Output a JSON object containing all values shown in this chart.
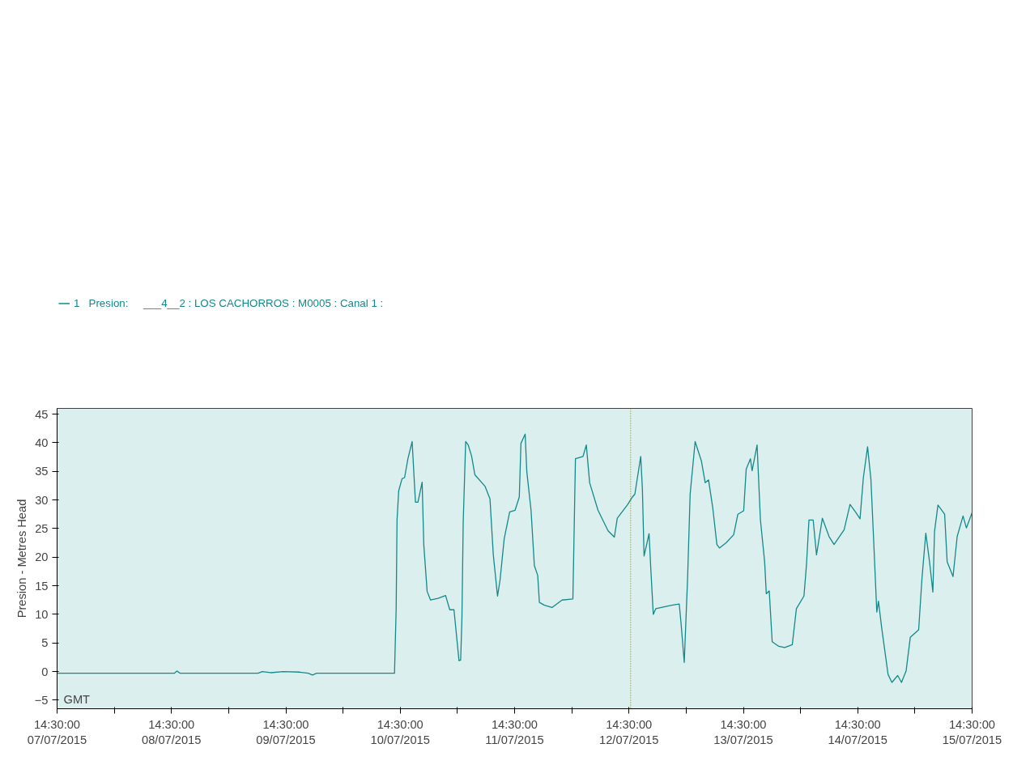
{
  "chart_data": {
    "type": "line",
    "ylabel": "Presion - Metres Head",
    "legend": "top left",
    "grid": false,
    "marker": "none",
    "line_style": "solid",
    "xlim": [
      "2015-07-07T14:30",
      "2015-07-15T14:30"
    ],
    "xticks": [
      {
        "value": "2015-07-07T14:30",
        "label": "14:30:00\n07/07/2015"
      },
      {
        "value": "2015-07-08T02:30",
        "label": null
      },
      {
        "value": "2015-07-08T14:30",
        "label": "14:30:00\n08/07/2015"
      },
      {
        "value": "2015-07-09T02:30",
        "label": null
      },
      {
        "value": "2015-07-09T14:30",
        "label": "14:30:00\n09/07/2015"
      },
      {
        "value": "2015-07-10T02:30",
        "label": null
      },
      {
        "value": "2015-07-10T14:30",
        "label": "14:30:00\n10/07/2015"
      },
      {
        "value": "2015-07-11T02:30",
        "label": null
      },
      {
        "value": "2015-07-11T14:30",
        "label": "14:30:00\n11/07/2015"
      },
      {
        "value": "2015-07-12T02:30",
        "label": null
      },
      {
        "value": "2015-07-12T14:30",
        "label": "14:30:00\n12/07/2015"
      },
      {
        "value": "2015-07-13T02:30",
        "label": null
      },
      {
        "value": "2015-07-13T14:30",
        "label": "14:30:00\n13/07/2015"
      },
      {
        "value": "2015-07-14T02:30",
        "label": null
      },
      {
        "value": "2015-07-14T14:30",
        "label": "14:30:00\n14/07/2015"
      },
      {
        "value": "2015-07-15T02:30",
        "label": null
      },
      {
        "value": "2015-07-15T14:30",
        "label": "14:30:00\n15/07/2015"
      }
    ],
    "ylim": [
      -6.5,
      46
    ],
    "yticks": [
      -5,
      0,
      5,
      10,
      15,
      20,
      25,
      30,
      35,
      40,
      45
    ],
    "annotations": [
      "GMT"
    ],
    "ref_lines": [
      {
        "axis": "x",
        "value": "2015-07-12T14:51",
        "label": null,
        "color": "#808000",
        "line_style": "dotted"
      }
    ],
    "series": [
      {
        "name": "1   Presion:     ___4__2 : LOS CACHORROS : M0005 : Canal 1 :",
        "color": "#14898a",
        "x": [
          "2015-07-07T14:30",
          "2015-07-08T15:06",
          "2015-07-08T15:38",
          "2015-07-08T16:20",
          "2015-07-09T08:40",
          "2015-07-09T09:33",
          "2015-07-09T11:18",
          "2015-07-09T13:56",
          "2015-07-09T17:27",
          "2015-07-09T19:13",
          "2015-07-09T20:05",
          "2015-07-09T20:58",
          "2015-07-10T13:18",
          "2015-07-10T13:39",
          "2015-07-10T13:50",
          "2015-07-10T14:11",
          "2015-07-10T14:53",
          "2015-07-10T15:25",
          "2015-07-10T16:07",
          "2015-07-10T17:00",
          "2015-07-10T17:42",
          "2015-07-10T18:13",
          "2015-07-10T19:06",
          "2015-07-10T19:27",
          "2015-07-10T20:09",
          "2015-07-10T20:52",
          "2015-07-10T22:27",
          "2015-07-11T00:01",
          "2015-07-11T00:54",
          "2015-07-11T01:47",
          "2015-07-11T02:50",
          "2015-07-11T03:11",
          "2015-07-11T03:27",
          "2015-07-11T03:43",
          "2015-07-11T04:14",
          "2015-07-11T04:46",
          "2015-07-11T05:28",
          "2015-07-11T06:10",
          "2015-07-11T08:17",
          "2015-07-11T09:20",
          "2015-07-11T10:02",
          "2015-07-11T10:55",
          "2015-07-11T11:27",
          "2015-07-11T12:19",
          "2015-07-11T13:28",
          "2015-07-11T14:36",
          "2015-07-11T15:29",
          "2015-07-11T15:50",
          "2015-07-11T16:43",
          "2015-07-11T17:04",
          "2015-07-11T17:57",
          "2015-07-11T18:39",
          "2015-07-11T19:21",
          "2015-07-11T19:42",
          "2015-07-11T20:46",
          "2015-07-11T22:21",
          "2015-07-12T00:27",
          "2015-07-12T02:44",
          "2015-07-12T03:16",
          "2015-07-12T04:51",
          "2015-07-12T05:33",
          "2015-07-12T06:15",
          "2015-07-12T08:00",
          "2015-07-12T10:07",
          "2015-07-12T11:26",
          "2015-07-12T12:03",
          "2015-07-12T14:09",
          "2015-07-12T15:12",
          "2015-07-12T15:44",
          "2015-07-12T16:58",
          "2015-07-12T17:19",
          "2015-07-12T17:40",
          "2015-07-12T18:43",
          "2015-07-12T19:04",
          "2015-07-12T19:36",
          "2015-07-12T20:08",
          "2015-07-12T23:28",
          "2015-07-13T01:03",
          "2015-07-13T01:24",
          "2015-07-13T02:06",
          "2015-07-13T02:48",
          "2015-07-13T03:20",
          "2015-07-13T04:23",
          "2015-07-13T05:42",
          "2015-07-13T06:30",
          "2015-07-13T07:12",
          "2015-07-13T08:05",
          "2015-07-13T08:57",
          "2015-07-13T09:29",
          "2015-07-13T10:53",
          "2015-07-13T12:28",
          "2015-07-13T13:21",
          "2015-07-13T14:34",
          "2015-07-13T15:06",
          "2015-07-13T15:59",
          "2015-07-13T16:20",
          "2015-07-13T17:23",
          "2015-07-13T18:05",
          "2015-07-13T18:58",
          "2015-07-13T19:19",
          "2015-07-13T19:56",
          "2015-07-13T20:33",
          "2015-07-13T21:57",
          "2015-07-13T23:11",
          "2015-07-14T00:46",
          "2015-07-14T01:38",
          "2015-07-14T03:13",
          "2015-07-14T03:45",
          "2015-07-14T04:16",
          "2015-07-14T05:09",
          "2015-07-14T05:51",
          "2015-07-14T07:05",
          "2015-07-14T08:29",
          "2015-07-14T09:32",
          "2015-07-14T11:39",
          "2015-07-14T12:53",
          "2015-07-14T14:07",
          "2015-07-14T14:59",
          "2015-07-14T15:41",
          "2015-07-14T16:34",
          "2015-07-14T17:16",
          "2015-07-14T17:53",
          "2015-07-14T18:30",
          "2015-07-14T18:51",
          "2015-07-14T19:33",
          "2015-07-14T20:52",
          "2015-07-14T21:40",
          "2015-07-14T22:53",
          "2015-07-14T23:41",
          "2015-07-15T00:39",
          "2015-07-15T01:32",
          "2015-07-15T03:17",
          "2015-07-15T03:59",
          "2015-07-15T04:47",
          "2015-07-15T05:34",
          "2015-07-15T06:16",
          "2015-07-15T06:37",
          "2015-07-15T07:20",
          "2015-07-15T08:44",
          "2015-07-15T09:16",
          "2015-07-15T10:30",
          "2015-07-15T11:22",
          "2015-07-15T12:36",
          "2015-07-15T13:18",
          "2015-07-15T14:30"
        ],
        "values": [
          -0.3,
          -0.3,
          0.1,
          -0.3,
          -0.3,
          0,
          -0.2,
          0,
          -0.1,
          -0.3,
          -0.6,
          -0.3,
          -0.3,
          11.0,
          26.5,
          31.6,
          33.7,
          33.9,
          37.2,
          40.2,
          29.6,
          29.6,
          33.1,
          22.1,
          14.0,
          12.5,
          12.8,
          13.3,
          10.8,
          10.8,
          1.9,
          2.0,
          9.3,
          26,
          40.2,
          39.6,
          37.7,
          34.4,
          32.4,
          30.2,
          20.4,
          13.2,
          16,
          23.2,
          27.9,
          28.2,
          30.5,
          39.9,
          41.5,
          34.9,
          28.2,
          18.5,
          16.8,
          12.1,
          11.6,
          11.2,
          12.5,
          12.7,
          37.2,
          37.6,
          39.6,
          33.0,
          28.2,
          24.6,
          23.5,
          26.8,
          29.1,
          30.5,
          31.0,
          37.6,
          31.9,
          20.2,
          24.1,
          18.2,
          10.0,
          11.0,
          11.6,
          11.8,
          8.7,
          1.6,
          16.3,
          31.0,
          40.2,
          36.8,
          33.0,
          33.5,
          28.6,
          22.2,
          21.6,
          22.5,
          23.9,
          27.5,
          28.1,
          35.4,
          37.2,
          35.1,
          39.6,
          26.5,
          19.2,
          13.6,
          14.1,
          5.2,
          4.4,
          4.2,
          4.7,
          11.0,
          13.2,
          18.7,
          26.5,
          26.5,
          20.4,
          26.8,
          23.6,
          22.2,
          24.8,
          29.2,
          27.8,
          26.7,
          33.9,
          39.3,
          33.6,
          22.2,
          10.4,
          12.3,
          7.5,
          -0.5,
          -1.9,
          -0.7,
          -1.9,
          0.1,
          6.0,
          7.3,
          16.3,
          24.2,
          19.2,
          13.9,
          24.5,
          29.1,
          27.5,
          19.2,
          16.6,
          23.6,
          27.2,
          25.1,
          27.8
        ]
      }
    ]
  }
}
